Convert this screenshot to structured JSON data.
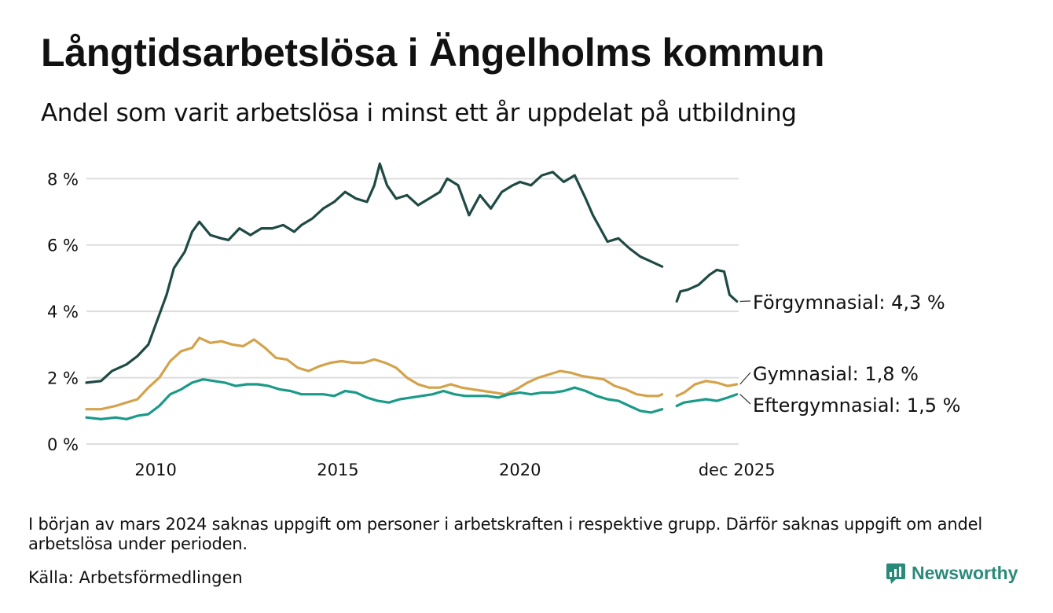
{
  "title": "Långtidsarbetslösa i Ängelholms kommun",
  "subtitle": "Andel som varit arbetslösa i minst ett år uppdelat på utbildning",
  "footnote": "I början av mars 2024 saknas uppgift om personer i arbetskraften i respektive grupp. Därför saknas uppgift om andel arbetslösa under perioden.",
  "source": "Källa: Arbetsförmedlingen",
  "brand": {
    "name": "Newsworthy",
    "icon": "newsworthy-logo-icon"
  },
  "colors": {
    "forgymnasial": "#1f4a44",
    "gymnasial": "#d4a24a",
    "eftergymnasial": "#1a9a88",
    "grid": "#dddddd"
  },
  "chart_data": {
    "type": "line",
    "title": "Långtidsarbetslösa i Ängelholms kommun",
    "xlabel": "",
    "ylabel": "",
    "ylim": [
      0,
      8.6
    ],
    "xlim": [
      2008.1,
      2026.0
    ],
    "y_ticks": [
      0,
      2,
      4,
      6,
      8
    ],
    "y_tick_labels": [
      "0 %",
      "2 %",
      "4 %",
      "6 %",
      "8 %"
    ],
    "x_ticks": [
      2010,
      2015,
      2020,
      2025.95
    ],
    "x_tick_labels": [
      "2010",
      "2015",
      "2020",
      "dec 2025"
    ],
    "gap": [
      2024.0,
      2024.3
    ],
    "series": [
      {
        "key": "forgymnasial",
        "name": "Förgymnasial",
        "end_label": "Förgymnasial: 4,3 %",
        "points": [
          [
            2008.1,
            1.85
          ],
          [
            2008.5,
            1.9
          ],
          [
            2008.8,
            2.2
          ],
          [
            2009.2,
            2.4
          ],
          [
            2009.5,
            2.65
          ],
          [
            2009.8,
            3.0
          ],
          [
            2010.0,
            3.6
          ],
          [
            2010.3,
            4.5
          ],
          [
            2010.5,
            5.3
          ],
          [
            2010.8,
            5.8
          ],
          [
            2011.0,
            6.4
          ],
          [
            2011.2,
            6.7
          ],
          [
            2011.5,
            6.3
          ],
          [
            2011.8,
            6.2
          ],
          [
            2012.0,
            6.15
          ],
          [
            2012.3,
            6.5
          ],
          [
            2012.6,
            6.3
          ],
          [
            2012.9,
            6.5
          ],
          [
            2013.2,
            6.5
          ],
          [
            2013.5,
            6.6
          ],
          [
            2013.8,
            6.4
          ],
          [
            2014.0,
            6.6
          ],
          [
            2014.3,
            6.8
          ],
          [
            2014.6,
            7.1
          ],
          [
            2014.9,
            7.3
          ],
          [
            2015.2,
            7.6
          ],
          [
            2015.5,
            7.4
          ],
          [
            2015.8,
            7.3
          ],
          [
            2016.0,
            7.8
          ],
          [
            2016.15,
            8.45
          ],
          [
            2016.35,
            7.8
          ],
          [
            2016.6,
            7.4
          ],
          [
            2016.9,
            7.5
          ],
          [
            2017.2,
            7.2
          ],
          [
            2017.5,
            7.4
          ],
          [
            2017.8,
            7.6
          ],
          [
            2018.0,
            8.0
          ],
          [
            2018.3,
            7.8
          ],
          [
            2018.6,
            6.9
          ],
          [
            2018.9,
            7.5
          ],
          [
            2019.2,
            7.1
          ],
          [
            2019.5,
            7.6
          ],
          [
            2019.8,
            7.8
          ],
          [
            2020.0,
            7.9
          ],
          [
            2020.3,
            7.8
          ],
          [
            2020.6,
            8.1
          ],
          [
            2020.9,
            8.2
          ],
          [
            2021.2,
            7.9
          ],
          [
            2021.5,
            8.1
          ],
          [
            2021.8,
            7.4
          ],
          [
            2022.0,
            6.9
          ],
          [
            2022.2,
            6.5
          ],
          [
            2022.4,
            6.1
          ],
          [
            2022.7,
            6.2
          ],
          [
            2023.0,
            5.9
          ],
          [
            2023.3,
            5.65
          ],
          [
            2023.6,
            5.5
          ],
          [
            2023.9,
            5.35
          ],
          [
            2024.3,
            4.3
          ],
          [
            2024.4,
            4.6
          ],
          [
            2024.6,
            4.65
          ],
          [
            2024.9,
            4.8
          ],
          [
            2025.2,
            5.1
          ],
          [
            2025.4,
            5.25
          ],
          [
            2025.6,
            5.2
          ],
          [
            2025.75,
            4.5
          ],
          [
            2025.95,
            4.3
          ]
        ]
      },
      {
        "key": "gymnasial",
        "name": "Gymnasial",
        "end_label": "Gymnasial: 1,8 %",
        "points": [
          [
            2008.1,
            1.05
          ],
          [
            2008.5,
            1.05
          ],
          [
            2008.9,
            1.15
          ],
          [
            2009.2,
            1.25
          ],
          [
            2009.5,
            1.35
          ],
          [
            2009.8,
            1.7
          ],
          [
            2010.1,
            2.0
          ],
          [
            2010.4,
            2.5
          ],
          [
            2010.7,
            2.8
          ],
          [
            2011.0,
            2.9
          ],
          [
            2011.2,
            3.2
          ],
          [
            2011.5,
            3.05
          ],
          [
            2011.8,
            3.1
          ],
          [
            2012.1,
            3.0
          ],
          [
            2012.4,
            2.95
          ],
          [
            2012.7,
            3.15
          ],
          [
            2013.0,
            2.9
          ],
          [
            2013.3,
            2.6
          ],
          [
            2013.6,
            2.55
          ],
          [
            2013.9,
            2.3
          ],
          [
            2014.2,
            2.2
          ],
          [
            2014.5,
            2.35
          ],
          [
            2014.8,
            2.45
          ],
          [
            2015.1,
            2.5
          ],
          [
            2015.4,
            2.45
          ],
          [
            2015.7,
            2.45
          ],
          [
            2016.0,
            2.55
          ],
          [
            2016.3,
            2.45
          ],
          [
            2016.6,
            2.3
          ],
          [
            2016.9,
            2.0
          ],
          [
            2017.2,
            1.8
          ],
          [
            2017.5,
            1.7
          ],
          [
            2017.8,
            1.7
          ],
          [
            2018.1,
            1.8
          ],
          [
            2018.4,
            1.7
          ],
          [
            2018.7,
            1.65
          ],
          [
            2019.0,
            1.6
          ],
          [
            2019.3,
            1.55
          ],
          [
            2019.6,
            1.5
          ],
          [
            2019.9,
            1.65
          ],
          [
            2020.2,
            1.85
          ],
          [
            2020.5,
            2.0
          ],
          [
            2020.8,
            2.1
          ],
          [
            2021.1,
            2.2
          ],
          [
            2021.4,
            2.15
          ],
          [
            2021.7,
            2.05
          ],
          [
            2022.0,
            2.0
          ],
          [
            2022.3,
            1.95
          ],
          [
            2022.6,
            1.75
          ],
          [
            2022.9,
            1.65
          ],
          [
            2023.2,
            1.5
          ],
          [
            2023.5,
            1.45
          ],
          [
            2023.8,
            1.45
          ],
          [
            2023.9,
            1.5
          ],
          [
            2024.3,
            1.45
          ],
          [
            2024.5,
            1.55
          ],
          [
            2024.8,
            1.8
          ],
          [
            2025.1,
            1.9
          ],
          [
            2025.4,
            1.85
          ],
          [
            2025.7,
            1.75
          ],
          [
            2025.95,
            1.8
          ]
        ]
      },
      {
        "key": "eftergymnasial",
        "name": "Eftergymnasial",
        "end_label": "Eftergymnasial: 1,5 %",
        "points": [
          [
            2008.1,
            0.8
          ],
          [
            2008.5,
            0.75
          ],
          [
            2008.9,
            0.8
          ],
          [
            2009.2,
            0.75
          ],
          [
            2009.5,
            0.85
          ],
          [
            2009.8,
            0.9
          ],
          [
            2010.1,
            1.15
          ],
          [
            2010.4,
            1.5
          ],
          [
            2010.7,
            1.65
          ],
          [
            2011.0,
            1.85
          ],
          [
            2011.3,
            1.95
          ],
          [
            2011.6,
            1.9
          ],
          [
            2011.9,
            1.85
          ],
          [
            2012.2,
            1.75
          ],
          [
            2012.5,
            1.8
          ],
          [
            2012.8,
            1.8
          ],
          [
            2013.1,
            1.75
          ],
          [
            2013.4,
            1.65
          ],
          [
            2013.7,
            1.6
          ],
          [
            2014.0,
            1.5
          ],
          [
            2014.3,
            1.5
          ],
          [
            2014.6,
            1.5
          ],
          [
            2014.9,
            1.45
          ],
          [
            2015.2,
            1.6
          ],
          [
            2015.5,
            1.55
          ],
          [
            2015.8,
            1.4
          ],
          [
            2016.1,
            1.3
          ],
          [
            2016.4,
            1.25
          ],
          [
            2016.7,
            1.35
          ],
          [
            2017.0,
            1.4
          ],
          [
            2017.3,
            1.45
          ],
          [
            2017.6,
            1.5
          ],
          [
            2017.9,
            1.6
          ],
          [
            2018.2,
            1.5
          ],
          [
            2018.5,
            1.45
          ],
          [
            2018.8,
            1.45
          ],
          [
            2019.1,
            1.45
          ],
          [
            2019.4,
            1.4
          ],
          [
            2019.7,
            1.5
          ],
          [
            2020.0,
            1.55
          ],
          [
            2020.3,
            1.5
          ],
          [
            2020.6,
            1.55
          ],
          [
            2020.9,
            1.55
          ],
          [
            2021.2,
            1.6
          ],
          [
            2021.5,
            1.7
          ],
          [
            2021.8,
            1.6
          ],
          [
            2022.1,
            1.45
          ],
          [
            2022.4,
            1.35
          ],
          [
            2022.7,
            1.3
          ],
          [
            2023.0,
            1.15
          ],
          [
            2023.3,
            1.0
          ],
          [
            2023.6,
            0.95
          ],
          [
            2023.9,
            1.05
          ],
          [
            2024.3,
            1.15
          ],
          [
            2024.5,
            1.25
          ],
          [
            2024.8,
            1.3
          ],
          [
            2025.1,
            1.35
          ],
          [
            2025.4,
            1.3
          ],
          [
            2025.7,
            1.4
          ],
          [
            2025.95,
            1.5
          ]
        ]
      }
    ]
  }
}
